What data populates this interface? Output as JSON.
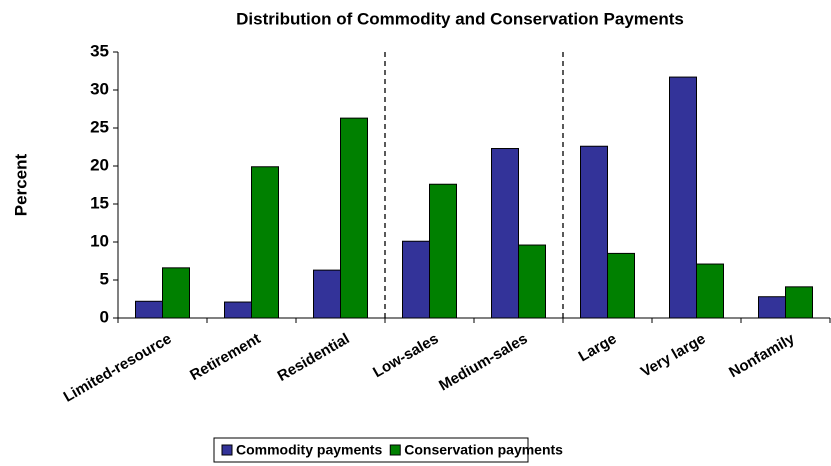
{
  "chart_data": {
    "type": "bar",
    "title": "Distribution of Commodity and Conservation Payments",
    "y_label": "Percent",
    "categories": [
      "Limited-resource",
      "Retirement",
      "Residential",
      "Low-sales",
      "Medium-sales",
      "Large",
      "Very large",
      "Nonfamily"
    ],
    "series": [
      {
        "name": "Commodity payments",
        "color": "#333399",
        "values": [
          2.2,
          2.1,
          6.3,
          10.1,
          22.3,
          22.6,
          31.7,
          2.8
        ]
      },
      {
        "name": "Conservation payments",
        "color": "#008000",
        "values": [
          6.6,
          19.9,
          26.3,
          17.6,
          9.6,
          8.5,
          7.1,
          4.1
        ]
      }
    ],
    "ylim": [
      0,
      35
    ],
    "yticks": [
      0,
      5,
      10,
      15,
      20,
      25,
      30,
      35
    ],
    "legend": "bottom"
  }
}
